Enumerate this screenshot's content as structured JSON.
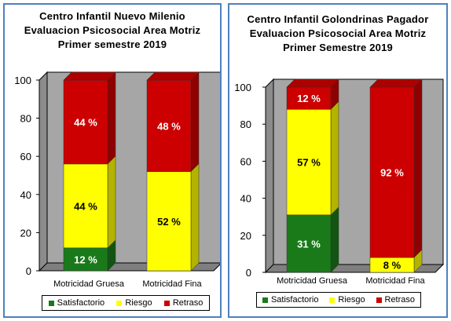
{
  "chart_data": [
    {
      "type": "bar",
      "stacked": true,
      "title": [
        "Centro Infantil Nuevo Milenio",
        "Evaluacion  Psicosocial  Area Motriz",
        "Primer semestre 2019"
      ],
      "categories": [
        "Motricidad Gruesa",
        "Motricidad Fina"
      ],
      "series": [
        {
          "name": "Satisfactorio",
          "values": [
            12,
            0
          ],
          "labels": [
            "12 %",
            ""
          ],
          "color": "#1a7a1a"
        },
        {
          "name": "Riesgo",
          "values": [
            44,
            52
          ],
          "labels": [
            "44 %",
            "52 %"
          ],
          "color": "#ffff00"
        },
        {
          "name": "Retraso",
          "values": [
            44,
            48
          ],
          "labels": [
            "44 %",
            "48 %"
          ],
          "color": "#cc0000"
        }
      ],
      "ylim": [
        0,
        100
      ],
      "yticks": [
        "0",
        "20",
        "40",
        "60",
        "80",
        "100"
      ],
      "legend": "bottom"
    },
    {
      "type": "bar",
      "stacked": true,
      "title": [
        "Centro Infantil Golondrinas Pagador",
        "Evaluacion Psicosocial Area Motriz",
        "Primer Semestre 2019"
      ],
      "categories": [
        "Motricidad Gruesa",
        "Motricidad Fina"
      ],
      "series": [
        {
          "name": "Satisfactorio",
          "values": [
            31,
            0
          ],
          "labels": [
            "31 %",
            ""
          ],
          "color": "#1a7a1a"
        },
        {
          "name": "Riesgo",
          "values": [
            57,
            8
          ],
          "labels": [
            "57 %",
            "8 %"
          ],
          "color": "#ffff00"
        },
        {
          "name": "Retraso",
          "values": [
            12,
            92
          ],
          "labels": [
            "12 %",
            "92 %"
          ],
          "color": "#cc0000"
        }
      ],
      "ylim": [
        0,
        100
      ],
      "yticks": [
        "0",
        "20",
        "40",
        "60",
        "80",
        "100"
      ],
      "legend": "bottom"
    }
  ]
}
